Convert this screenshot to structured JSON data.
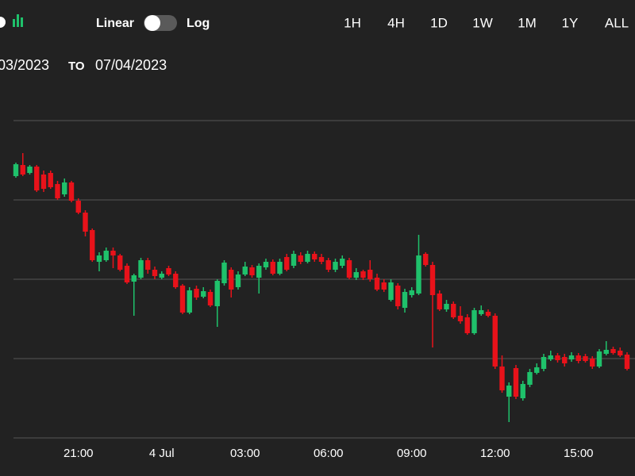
{
  "header": {
    "scale_options": [
      "Linear",
      "Log"
    ],
    "active_scale_index": 0,
    "ranges": [
      "1H",
      "4H",
      "1D",
      "1W",
      "1M",
      "1Y",
      "ALL"
    ],
    "active_range_index": 2,
    "date_from": "03/2023",
    "to": "TO",
    "date_to": "07/04/2023"
  },
  "chart_data": {
    "type": "candlestick",
    "categories": [
      null,
      null,
      null,
      null,
      null,
      null,
      null,
      null,
      null,
      "21:00",
      null,
      null,
      null,
      null,
      null,
      null,
      null,
      null,
      null,
      null,
      null,
      "4 Jul",
      null,
      null,
      null,
      null,
      null,
      null,
      null,
      null,
      null,
      null,
      null,
      "03:00",
      null,
      null,
      null,
      null,
      null,
      null,
      null,
      null,
      null,
      null,
      null,
      "06:00",
      null,
      null,
      null,
      null,
      null,
      null,
      null,
      null,
      null,
      null,
      null,
      "09:00",
      null,
      null,
      null,
      null,
      null,
      null,
      null,
      null,
      null,
      null,
      null,
      "12:00",
      null,
      null,
      null,
      null,
      null,
      null,
      null,
      null,
      null,
      null,
      null,
      "15:00",
      null,
      null,
      null,
      null,
      null,
      null,
      null
    ],
    "open": [
      31260,
      31288,
      31268,
      31284,
      31264,
      31268,
      31240,
      31214,
      31244,
      31198,
      31168,
      31124,
      31044,
      31048,
      31072,
      31060,
      31034,
      30994,
      31004,
      31048,
      31024,
      31004,
      31028,
      31014,
      30984,
      30916,
      30976,
      30956,
      30968,
      30932,
      30990,
      31024,
      30980,
      31012,
      31030,
      31004,
      31030,
      31044,
      31014,
      31056,
      31034,
      31060,
      31044,
      31064,
      31056,
      31048,
      31024,
      31034,
      31048,
      31004,
      31020,
      31024,
      31004,
      30992,
      30948,
      30984,
      30928,
      30960,
      30964,
      31064,
      31036,
      30964,
      30924,
      30938,
      30908,
      30904,
      30864,
      30912,
      30918,
      30908,
      30780,
      30704,
      30776,
      30700,
      30734,
      30764,
      30774,
      30798,
      30808,
      30804,
      30798,
      30808,
      30806,
      30800,
      30780,
      30812,
      30824,
      30820,
      30810
    ],
    "high": [
      31294,
      31318,
      31288,
      31288,
      31274,
      31274,
      31248,
      31254,
      31248,
      31204,
      31174,
      31128,
      31068,
      31080,
      31080,
      31064,
      31040,
      31014,
      31054,
      31054,
      31032,
      31020,
      31034,
      31020,
      30988,
      30980,
      30984,
      30980,
      30974,
      31000,
      31048,
      31030,
      31020,
      31044,
      31036,
      31040,
      31052,
      31050,
      31052,
      31064,
      31072,
      31068,
      31072,
      31070,
      31064,
      31054,
      31052,
      31060,
      31054,
      31028,
      31024,
      31048,
      31014,
      31000,
      31000,
      30990,
      30976,
      30980,
      31112,
      31068,
      31044,
      30972,
      30948,
      30944,
      30932,
      30912,
      30928,
      30934,
      30924,
      30914,
      30808,
      30740,
      30784,
      30744,
      30774,
      30788,
      30812,
      30820,
      30814,
      30812,
      30816,
      30814,
      30812,
      30806,
      30824,
      30844,
      30830,
      30828,
      30816
    ],
    "low": [
      31256,
      31260,
      31264,
      31220,
      31220,
      31228,
      31200,
      31208,
      31194,
      31164,
      31108,
      31044,
      31020,
      31044,
      31028,
      31020,
      30988,
      30908,
      31000,
      31014,
      31000,
      31000,
      31008,
      30976,
      30912,
      30912,
      30948,
      30952,
      30930,
      30880,
      30984,
      30954,
      30974,
      31008,
      31004,
      30964,
      31024,
      31010,
      31010,
      31020,
      31028,
      31038,
      31040,
      31044,
      31038,
      31018,
      31018,
      31028,
      31000,
      30998,
      30998,
      30994,
      30970,
      30968,
      30944,
      30924,
      30916,
      30954,
      30960,
      31032,
      30828,
      30920,
      30918,
      30900,
      30888,
      30860,
      30860,
      30908,
      30904,
      30774,
      30714,
      30640,
      30698,
      30694,
      30728,
      30760,
      30768,
      30794,
      30790,
      30780,
      30792,
      30788,
      30790,
      30774,
      30776,
      30808,
      30810,
      30804,
      30770
    ],
    "close": [
      31290,
      31264,
      31284,
      31224,
      31228,
      31232,
      31204,
      31244,
      31198,
      31168,
      31120,
      31048,
      31060,
      31072,
      31060,
      31024,
      30992,
      31010,
      31048,
      31024,
      31008,
      31014,
      31012,
      30980,
      30916,
      30972,
      30954,
      30970,
      30934,
      30996,
      31042,
      30974,
      31012,
      31032,
      31010,
      31034,
      31044,
      31014,
      31044,
      31024,
      31064,
      31044,
      31064,
      31050,
      31044,
      31024,
      31044,
      31052,
      31004,
      31018,
      31004,
      31000,
      30974,
      30974,
      30992,
      30932,
      30968,
      30972,
      31060,
      31036,
      30960,
      30924,
      30938,
      30904,
      30894,
      30864,
      30922,
      30922,
      30908,
      30780,
      30720,
      30732,
      30704,
      30736,
      30766,
      30778,
      30804,
      30808,
      30796,
      30788,
      30808,
      30794,
      30794,
      30780,
      30818,
      30822,
      30814,
      30808,
      30774
    ],
    "up_color": "#1fc16b",
    "down_color": "#e8121a",
    "ylim": [
      30580,
      31440
    ],
    "gridlines": [
      31400,
      31200,
      31000,
      30800,
      30600
    ],
    "grid": true
  }
}
